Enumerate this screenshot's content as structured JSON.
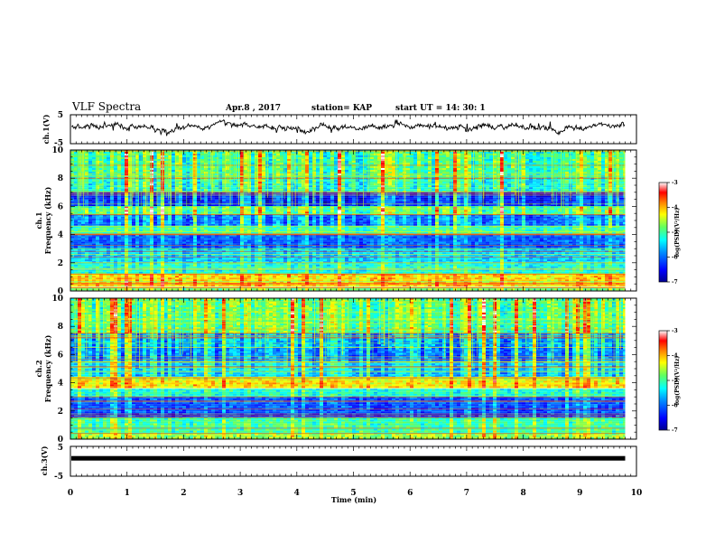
{
  "header": {
    "title": "VLF Spectra",
    "date": "Apr.8 , 2017",
    "station": "station= KAP",
    "start": "start  UT =  14: 30: 1"
  },
  "chart_data": [
    {
      "type": "line",
      "panel": "top",
      "ylabel": "ch.1(V)",
      "ylim": [
        -5,
        5
      ],
      "y_ticks": [
        "5",
        "-5"
      ],
      "xlim": [
        0,
        10
      ],
      "series_color": "#000000",
      "description_values": "noisy waveform fluctuating around about +1 V with amplitude roughly ±1.5 V over 0–9.8 min"
    },
    {
      "type": "heatmap",
      "panel": "ch1",
      "ylabel_line1": "ch.1",
      "ylabel_line2": "Frequency (kHz)",
      "ylim": [
        0,
        10
      ],
      "y_ticks": [
        "0",
        "2",
        "4",
        "6",
        "8",
        "10"
      ],
      "xlim": [
        0,
        10
      ],
      "data_end_min": 9.8,
      "colorbar": {
        "label": "log(PSD)(V²/Hz)",
        "range": [
          -7,
          -3
        ],
        "ticks": [
          "-3",
          "-4",
          "-5",
          "-6",
          "-7"
        ]
      },
      "bands": [
        {
          "from_khz": 0.0,
          "to_khz": 0.3,
          "level": 0.55
        },
        {
          "from_khz": 0.3,
          "to_khz": 1.2,
          "level": 0.72
        },
        {
          "from_khz": 1.2,
          "to_khz": 2.0,
          "level": 0.45
        },
        {
          "from_khz": 2.0,
          "to_khz": 3.0,
          "level": 0.38
        },
        {
          "from_khz": 3.0,
          "to_khz": 4.0,
          "level": 0.25
        },
        {
          "from_khz": 4.0,
          "to_khz": 4.6,
          "level": 0.5
        },
        {
          "from_khz": 4.6,
          "to_khz": 5.4,
          "level": 0.3
        },
        {
          "from_khz": 5.4,
          "to_khz": 6.0,
          "level": 0.55
        },
        {
          "from_khz": 6.0,
          "to_khz": 7.0,
          "level": 0.2
        },
        {
          "from_khz": 7.0,
          "to_khz": 8.0,
          "level": 0.48
        },
        {
          "from_khz": 8.0,
          "to_khz": 10.0,
          "level": 0.52
        }
      ]
    },
    {
      "type": "heatmap",
      "panel": "ch2",
      "ylabel_line1": "ch.2",
      "ylabel_line2": "Frequency (kHz)",
      "ylim": [
        0,
        10
      ],
      "y_ticks": [
        "0",
        "2",
        "4",
        "6",
        "8",
        "10"
      ],
      "xlim": [
        0,
        10
      ],
      "data_end_min": 9.8,
      "colorbar": {
        "label": "log(PSD)(V²/Hz)",
        "range": [
          -7,
          -3
        ],
        "ticks": [
          "-3",
          "-4",
          "-5",
          "-6",
          "-7"
        ]
      },
      "bands": [
        {
          "from_khz": 0.0,
          "to_khz": 0.4,
          "level": 0.6
        },
        {
          "from_khz": 0.4,
          "to_khz": 1.5,
          "level": 0.5
        },
        {
          "from_khz": 1.5,
          "to_khz": 3.0,
          "level": 0.22
        },
        {
          "from_khz": 3.0,
          "to_khz": 3.6,
          "level": 0.45
        },
        {
          "from_khz": 3.6,
          "to_khz": 4.4,
          "level": 0.7
        },
        {
          "from_khz": 4.4,
          "to_khz": 5.5,
          "level": 0.4
        },
        {
          "from_khz": 5.5,
          "to_khz": 6.5,
          "level": 0.3
        },
        {
          "from_khz": 6.5,
          "to_khz": 7.5,
          "level": 0.35
        },
        {
          "from_khz": 7.5,
          "to_khz": 10.0,
          "level": 0.55
        }
      ]
    },
    {
      "type": "line",
      "panel": "bottom",
      "ylabel": "ch.3(V)",
      "ylim": [
        -5,
        5
      ],
      "y_ticks": [
        "5",
        "-5"
      ],
      "xlim": [
        0,
        10
      ],
      "x_ticks": [
        "0",
        "1",
        "2",
        "3",
        "4",
        "5",
        "6",
        "7",
        "8",
        "9",
        "10"
      ],
      "xlabel": "Time  (min)",
      "constant_value": 1,
      "data_end_min": 9.8
    }
  ],
  "colors": {
    "colormap": [
      "#00008f",
      "#0000ff",
      "#0090ff",
      "#00ffff",
      "#60ff60",
      "#ffff00",
      "#ff8000",
      "#ff0000",
      "#ffffff"
    ]
  }
}
